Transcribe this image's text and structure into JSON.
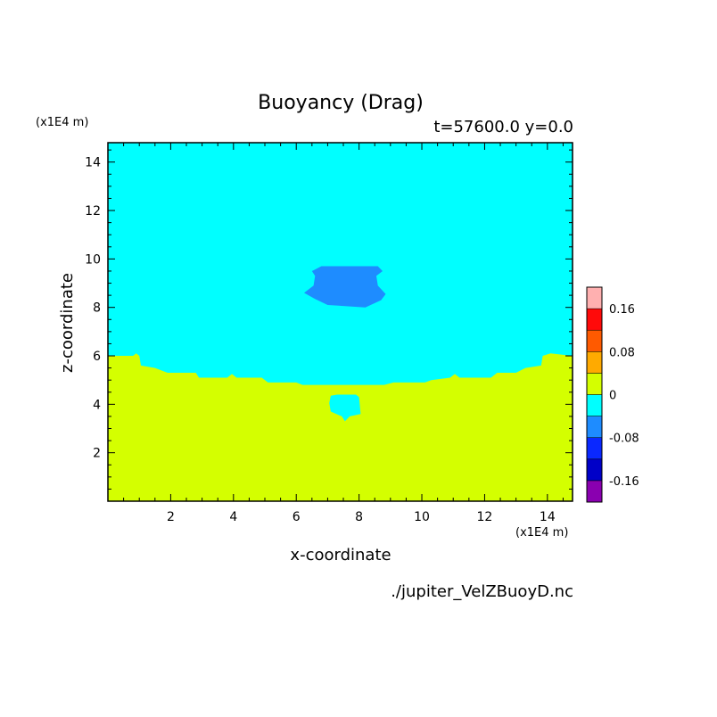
{
  "chart_data": {
    "type": "heatmap",
    "title": "Buoyancy (Drag)",
    "subtitle": "t=57600.0 y=0.0",
    "xlabel": "x-coordinate",
    "ylabel": "z-coordinate",
    "x_unit": "(x1E4 m)",
    "y_unit": "(x1E4 m)",
    "source_file": "./jupiter_VelZBuoyD.nc",
    "xlim": [
      0,
      14.8
    ],
    "ylim": [
      0,
      14.8
    ],
    "x_ticks": [
      2,
      4,
      6,
      8,
      10,
      12,
      14
    ],
    "y_ticks": [
      2,
      4,
      6,
      8,
      10,
      12,
      14
    ],
    "colorbar": {
      "levels": [
        -0.2,
        -0.16,
        -0.12,
        -0.08,
        -0.04,
        0,
        0.04,
        0.08,
        0.12,
        0.16,
        0.2
      ],
      "colors": [
        "#8a00b0",
        "#0000c8",
        "#0a28ff",
        "#1e8cff",
        "#00ffff",
        "#d4ff00",
        "#ffaa00",
        "#ff5a00",
        "#ff0a0a",
        "#ffb0b0"
      ],
      "tick_values": [
        0.16,
        0.08,
        0,
        -0.08,
        -0.16
      ],
      "tick_labels": [
        "0.16",
        "0.08",
        "0",
        "-0.08",
        "-0.16"
      ]
    },
    "regions": [
      {
        "range": [
          -0.04,
          0
        ],
        "color": "#00ffff",
        "description": "background upper region"
      },
      {
        "range": [
          0,
          0.04
        ],
        "color": "#d4ff00",
        "boundary": [
          [
            0,
            6.0
          ],
          [
            0.8,
            6.0
          ],
          [
            0.9,
            6.1
          ],
          [
            1.0,
            6.0
          ],
          [
            1.05,
            5.6
          ],
          [
            1.5,
            5.5
          ],
          [
            1.9,
            5.3
          ],
          [
            2.8,
            5.3
          ],
          [
            2.9,
            5.1
          ],
          [
            3.8,
            5.1
          ],
          [
            3.95,
            5.25
          ],
          [
            4.1,
            5.1
          ],
          [
            4.9,
            5.1
          ],
          [
            5.1,
            4.9
          ],
          [
            6.0,
            4.9
          ],
          [
            6.2,
            4.8
          ],
          [
            8.8,
            4.8
          ],
          [
            9.1,
            4.9
          ],
          [
            10.1,
            4.9
          ],
          [
            10.3,
            5.0
          ],
          [
            10.9,
            5.1
          ],
          [
            11.05,
            5.25
          ],
          [
            11.2,
            5.1
          ],
          [
            12.2,
            5.1
          ],
          [
            12.4,
            5.3
          ],
          [
            13.0,
            5.3
          ],
          [
            13.3,
            5.5
          ],
          [
            13.8,
            5.6
          ],
          [
            13.85,
            6.0
          ],
          [
            14.1,
            6.1
          ],
          [
            14.8,
            6.0
          ]
        ]
      },
      {
        "range": [
          -0.04,
          0
        ],
        "color": "#00ffff",
        "description": "small pocket near surface",
        "boundary": [
          [
            7.05,
            4.05
          ],
          [
            7.1,
            4.35
          ],
          [
            7.3,
            4.4
          ],
          [
            7.9,
            4.4
          ],
          [
            8.0,
            4.3
          ],
          [
            8.05,
            3.6
          ],
          [
            7.7,
            3.5
          ],
          [
            7.55,
            3.3
          ],
          [
            7.45,
            3.5
          ],
          [
            7.1,
            3.7
          ]
        ]
      },
      {
        "range": [
          -0.08,
          -0.04
        ],
        "color": "#1e8cff",
        "description": "blob",
        "boundary": [
          [
            6.5,
            9.5
          ],
          [
            6.8,
            9.7
          ],
          [
            8.6,
            9.7
          ],
          [
            8.75,
            9.5
          ],
          [
            8.55,
            9.3
          ],
          [
            8.6,
            8.9
          ],
          [
            8.85,
            8.55
          ],
          [
            8.7,
            8.3
          ],
          [
            8.2,
            8.0
          ],
          [
            7.0,
            8.1
          ],
          [
            6.6,
            8.35
          ],
          [
            6.25,
            8.6
          ],
          [
            6.55,
            8.9
          ],
          [
            6.6,
            9.3
          ]
        ]
      }
    ]
  }
}
